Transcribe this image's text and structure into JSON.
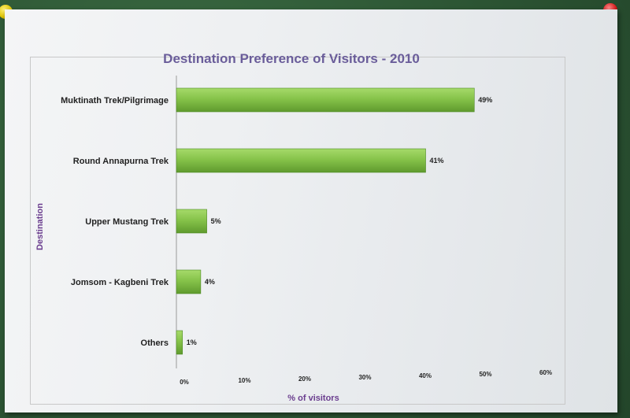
{
  "chart_data": {
    "type": "bar",
    "orientation": "horizontal",
    "title": "Destination Preference of Visitors - 2010",
    "xlabel": "% of visitors",
    "ylabel": "Destination",
    "categories": [
      "Muktinath Trek/Pilgrimage",
      "Round Annapurna Trek",
      "Upper Mustang Trek",
      "Jomsom - Kagbeni Trek",
      "Others"
    ],
    "values": [
      49,
      41,
      5,
      4,
      1
    ],
    "data_labels": [
      "49%",
      "41%",
      "5%",
      "4%",
      "1%"
    ],
    "xlim": [
      0,
      60
    ],
    "x_ticks": [
      "0%",
      "10%",
      "20%",
      "30%",
      "40%",
      "50%",
      "60%"
    ],
    "grid": false,
    "legend": "none",
    "bar_color": "#86c34a"
  }
}
